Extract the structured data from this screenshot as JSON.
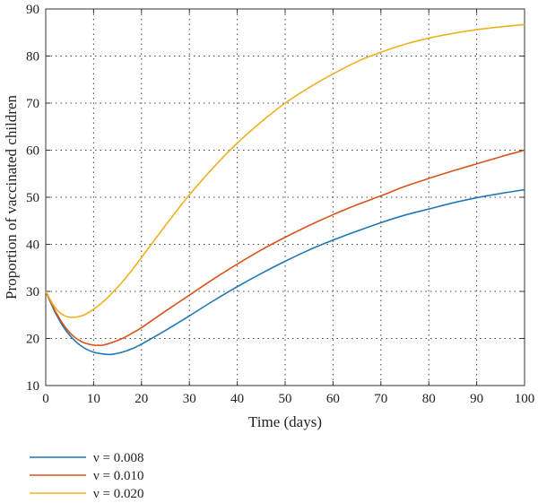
{
  "chart_data": {
    "type": "line",
    "xlabel": "Time (days)",
    "ylabel": "Proportion of vaccinated children",
    "xlim": [
      0,
      100
    ],
    "ylim": [
      10,
      90
    ],
    "xticks": [
      0,
      10,
      20,
      30,
      40,
      50,
      60,
      70,
      80,
      90,
      100
    ],
    "yticks": [
      10,
      20,
      30,
      40,
      50,
      60,
      70,
      80,
      90
    ],
    "grid": true,
    "grid_style": "dotted",
    "legend_position": "below-left",
    "series": [
      {
        "name": "ν = 0.008",
        "color": "#1f77b4",
        "x": [
          0,
          2,
          4,
          6,
          8,
          10,
          12,
          13,
          14,
          16,
          18,
          20,
          25,
          30,
          35,
          40,
          45,
          50,
          55,
          60,
          65,
          70,
          75,
          80,
          85,
          90,
          95,
          100
        ],
        "y": [
          30,
          25.5,
          22,
          19.6,
          18,
          17.1,
          16.7,
          16.6,
          16.65,
          17.1,
          17.8,
          18.8,
          21.7,
          24.8,
          28,
          31,
          33.8,
          36.4,
          38.8,
          40.9,
          42.8,
          44.6,
          46.2,
          47.5,
          48.8,
          49.9,
          50.8,
          51.6
        ]
      },
      {
        "name": "ν = 0.010",
        "color": "#d95319",
        "x": [
          0,
          2,
          4,
          6,
          8,
          10,
          11,
          12,
          14,
          16,
          18,
          20,
          25,
          30,
          35,
          40,
          45,
          50,
          55,
          60,
          65,
          70,
          75,
          80,
          85,
          90,
          95,
          100
        ],
        "y": [
          30,
          25.8,
          22.5,
          20.3,
          19.1,
          18.6,
          18.55,
          18.6,
          19.2,
          20,
          21.1,
          22.3,
          25.8,
          29.2,
          32.6,
          35.8,
          38.8,
          41.5,
          44,
          46.3,
          48.4,
          50.3,
          52.3,
          54,
          55.6,
          57.1,
          58.6,
          60
        ]
      },
      {
        "name": "ν = 0.020",
        "color": "#edb120",
        "x": [
          0,
          2,
          4,
          6,
          8,
          10,
          12,
          14,
          16,
          18,
          20,
          25,
          30,
          35,
          40,
          45,
          50,
          55,
          60,
          65,
          70,
          75,
          80,
          85,
          90,
          95,
          100
        ],
        "y": [
          30,
          26.5,
          24.8,
          24.5,
          25,
          26.2,
          27.8,
          29.8,
          32,
          34.5,
          37.2,
          44,
          50.5,
          56.3,
          61.5,
          66,
          70,
          73.3,
          76.2,
          78.8,
          80.8,
          82.5,
          83.8,
          84.8,
          85.6,
          86.2,
          86.7
        ]
      }
    ]
  }
}
